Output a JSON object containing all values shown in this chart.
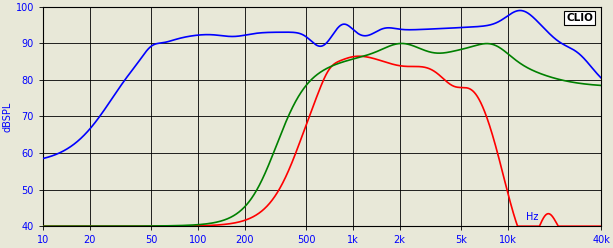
{
  "ylabel": "dBSPL",
  "xlabel_right": "Hz",
  "annotation": "CLIO",
  "xmin": 10,
  "xmax": 40000,
  "ymin": 40,
  "ymax": 100,
  "yticks": [
    40,
    50,
    60,
    70,
    80,
    90,
    100
  ],
  "xticks": [
    10,
    20,
    50,
    100,
    200,
    500,
    1000,
    2000,
    5000,
    10000,
    40000
  ],
  "xticklabels": [
    "10",
    "20",
    "50",
    "100",
    "200",
    "500",
    "1k",
    "2k",
    "5k",
    "10k",
    "40k"
  ],
  "background_color": "#e8e8d8",
  "grid_color": "#000000",
  "blue_color": "#0000ff",
  "red_color": "#ff0000",
  "green_color": "#008000",
  "line_width": 1.2
}
